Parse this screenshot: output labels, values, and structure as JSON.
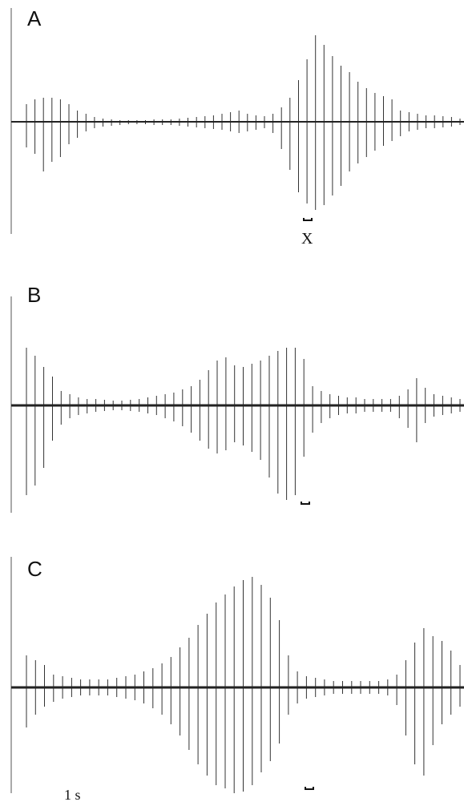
{
  "panels": [
    {
      "id": "a",
      "label": "A",
      "marker_label": "X",
      "pulse_amplitudes_up": [
        22,
        28,
        30,
        30,
        28,
        22,
        14,
        10,
        6,
        4,
        3,
        2,
        2,
        2,
        2,
        3,
        3,
        3,
        4,
        5,
        6,
        7,
        8,
        10,
        12,
        14,
        10,
        8,
        7,
        10,
        18,
        30,
        52,
        78,
        108,
        96,
        82,
        70,
        62,
        50,
        42,
        36,
        32,
        28,
        14,
        12,
        10,
        8,
        8,
        7,
        6,
        4
      ],
      "pulse_amplitudes_down": [
        32,
        40,
        62,
        50,
        44,
        28,
        20,
        12,
        8,
        6,
        5,
        4,
        3,
        3,
        3,
        4,
        4,
        4,
        5,
        6,
        7,
        8,
        9,
        10,
        12,
        14,
        12,
        10,
        8,
        14,
        34,
        60,
        88,
        102,
        110,
        104,
        92,
        80,
        62,
        52,
        44,
        36,
        30,
        24,
        18,
        12,
        10,
        8,
        8,
        7,
        6,
        4
      ]
    },
    {
      "id": "b",
      "label": "B",
      "marker_label": "",
      "pulse_amplitudes_up": [
        72,
        62,
        48,
        36,
        18,
        14,
        10,
        8,
        8,
        7,
        6,
        6,
        7,
        8,
        10,
        12,
        14,
        16,
        20,
        24,
        32,
        44,
        56,
        60,
        50,
        48,
        52,
        56,
        62,
        68,
        72,
        72,
        58,
        24,
        18,
        14,
        12,
        10,
        10,
        8,
        8,
        8,
        8,
        12,
        20,
        34,
        22,
        14,
        12,
        10,
        8
      ],
      "pulse_amplitudes_down": [
        112,
        100,
        78,
        44,
        24,
        16,
        12,
        10,
        8,
        7,
        6,
        6,
        7,
        8,
        10,
        12,
        16,
        20,
        26,
        34,
        44,
        54,
        60,
        56,
        46,
        50,
        58,
        68,
        90,
        110,
        118,
        112,
        64,
        34,
        22,
        16,
        12,
        10,
        10,
        8,
        8,
        8,
        8,
        16,
        28,
        46,
        22,
        14,
        12,
        10,
        8
      ]
    },
    {
      "id": "c",
      "label": "C",
      "marker_label": "",
      "scale_label": "1 s",
      "pulse_amplitudes_up": [
        40,
        34,
        28,
        16,
        14,
        12,
        10,
        10,
        10,
        10,
        12,
        14,
        16,
        20,
        24,
        30,
        38,
        50,
        62,
        78,
        92,
        106,
        116,
        126,
        134,
        138,
        128,
        112,
        84,
        40,
        20,
        14,
        12,
        10,
        8,
        8,
        8,
        8,
        8,
        8,
        10,
        16,
        34,
        56,
        74,
        64,
        58,
        46,
        28
      ],
      "pulse_amplitudes_down": [
        50,
        34,
        24,
        18,
        14,
        12,
        10,
        10,
        10,
        10,
        12,
        14,
        16,
        20,
        26,
        34,
        46,
        60,
        78,
        96,
        110,
        122,
        126,
        132,
        130,
        122,
        106,
        92,
        70,
        34,
        20,
        14,
        12,
        10,
        8,
        8,
        8,
        8,
        8,
        8,
        10,
        22,
        60,
        96,
        110,
        72,
        46,
        34,
        24
      ]
    }
  ]
}
